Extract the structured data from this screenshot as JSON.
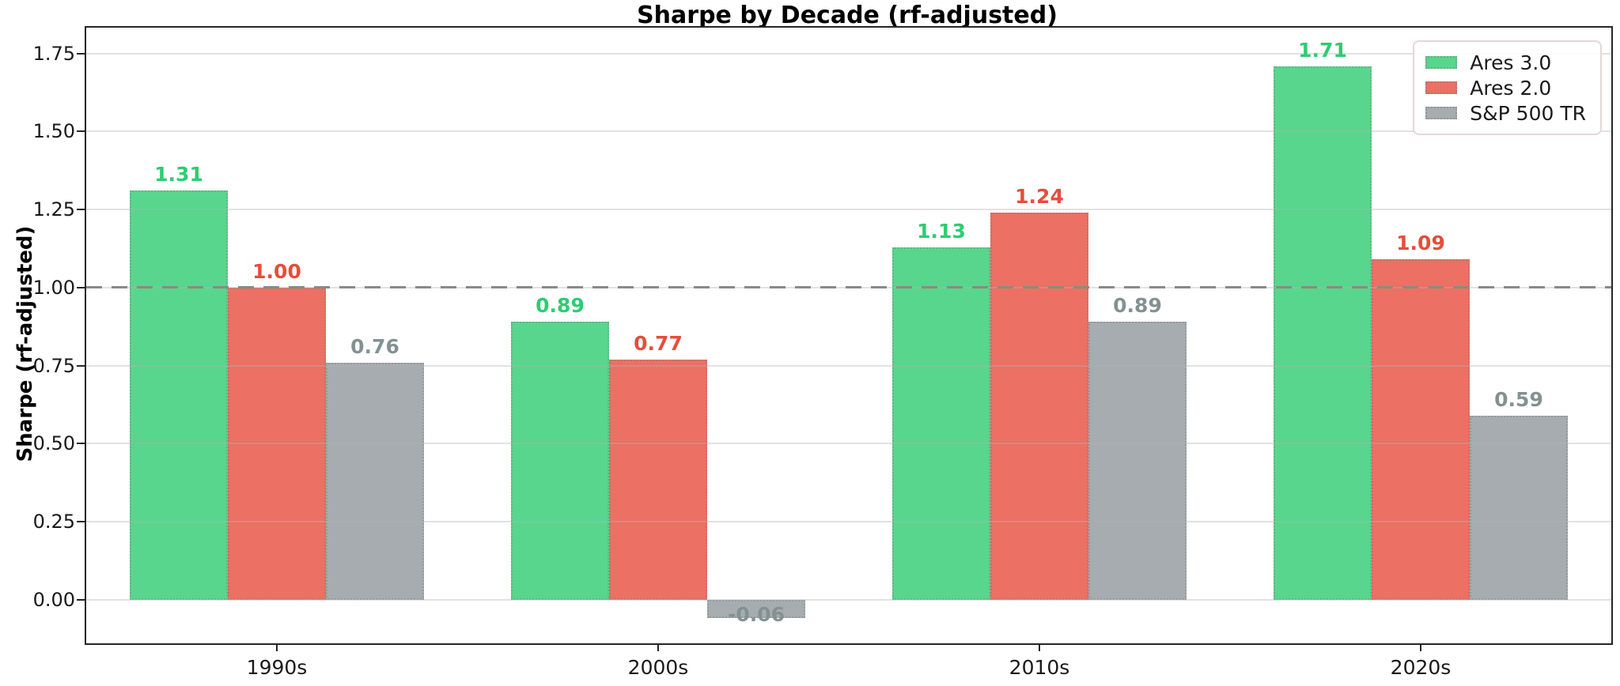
{
  "chart_data": {
    "type": "bar",
    "title": "Sharpe by Decade (rf-adjusted)",
    "ylabel": "Sharpe (rf-adjusted)",
    "xlabel": "",
    "categories": [
      "1990s",
      "2000s",
      "2010s",
      "2020s"
    ],
    "series": [
      {
        "name": "Ares 3.0",
        "color": "#58D68D",
        "label_color": "#2ECC71",
        "values": [
          1.31,
          0.89,
          1.13,
          1.71
        ],
        "labels": [
          "1.31",
          "0.89",
          "1.13",
          "1.71"
        ]
      },
      {
        "name": "Ares 2.0",
        "color": "#EC7063",
        "label_color": "#E74C3C",
        "values": [
          1.0,
          0.77,
          1.24,
          1.09
        ],
        "labels": [
          "1.00",
          "0.77",
          "1.24",
          "1.09"
        ]
      },
      {
        "name": "S&P 500 TR",
        "color": "#A6ACAF",
        "label_color": "#839192",
        "values": [
          0.76,
          -0.06,
          0.89,
          0.59
        ],
        "labels": [
          "0.76",
          "-0.06",
          "0.89",
          "0.59"
        ]
      }
    ],
    "ytick_labels": [
      "0.00",
      "0.25",
      "0.50",
      "0.75",
      "1.00",
      "1.25",
      "1.50",
      "1.75"
    ],
    "ylim": [
      -0.14,
      1.833
    ],
    "reference_line": {
      "value": 1.0,
      "style": "dashed",
      "color": "#8a8a8a"
    },
    "grid": true,
    "grid_axis": "y",
    "legend_position": "upper right",
    "axes_box": true,
    "background": "#ffffff"
  }
}
